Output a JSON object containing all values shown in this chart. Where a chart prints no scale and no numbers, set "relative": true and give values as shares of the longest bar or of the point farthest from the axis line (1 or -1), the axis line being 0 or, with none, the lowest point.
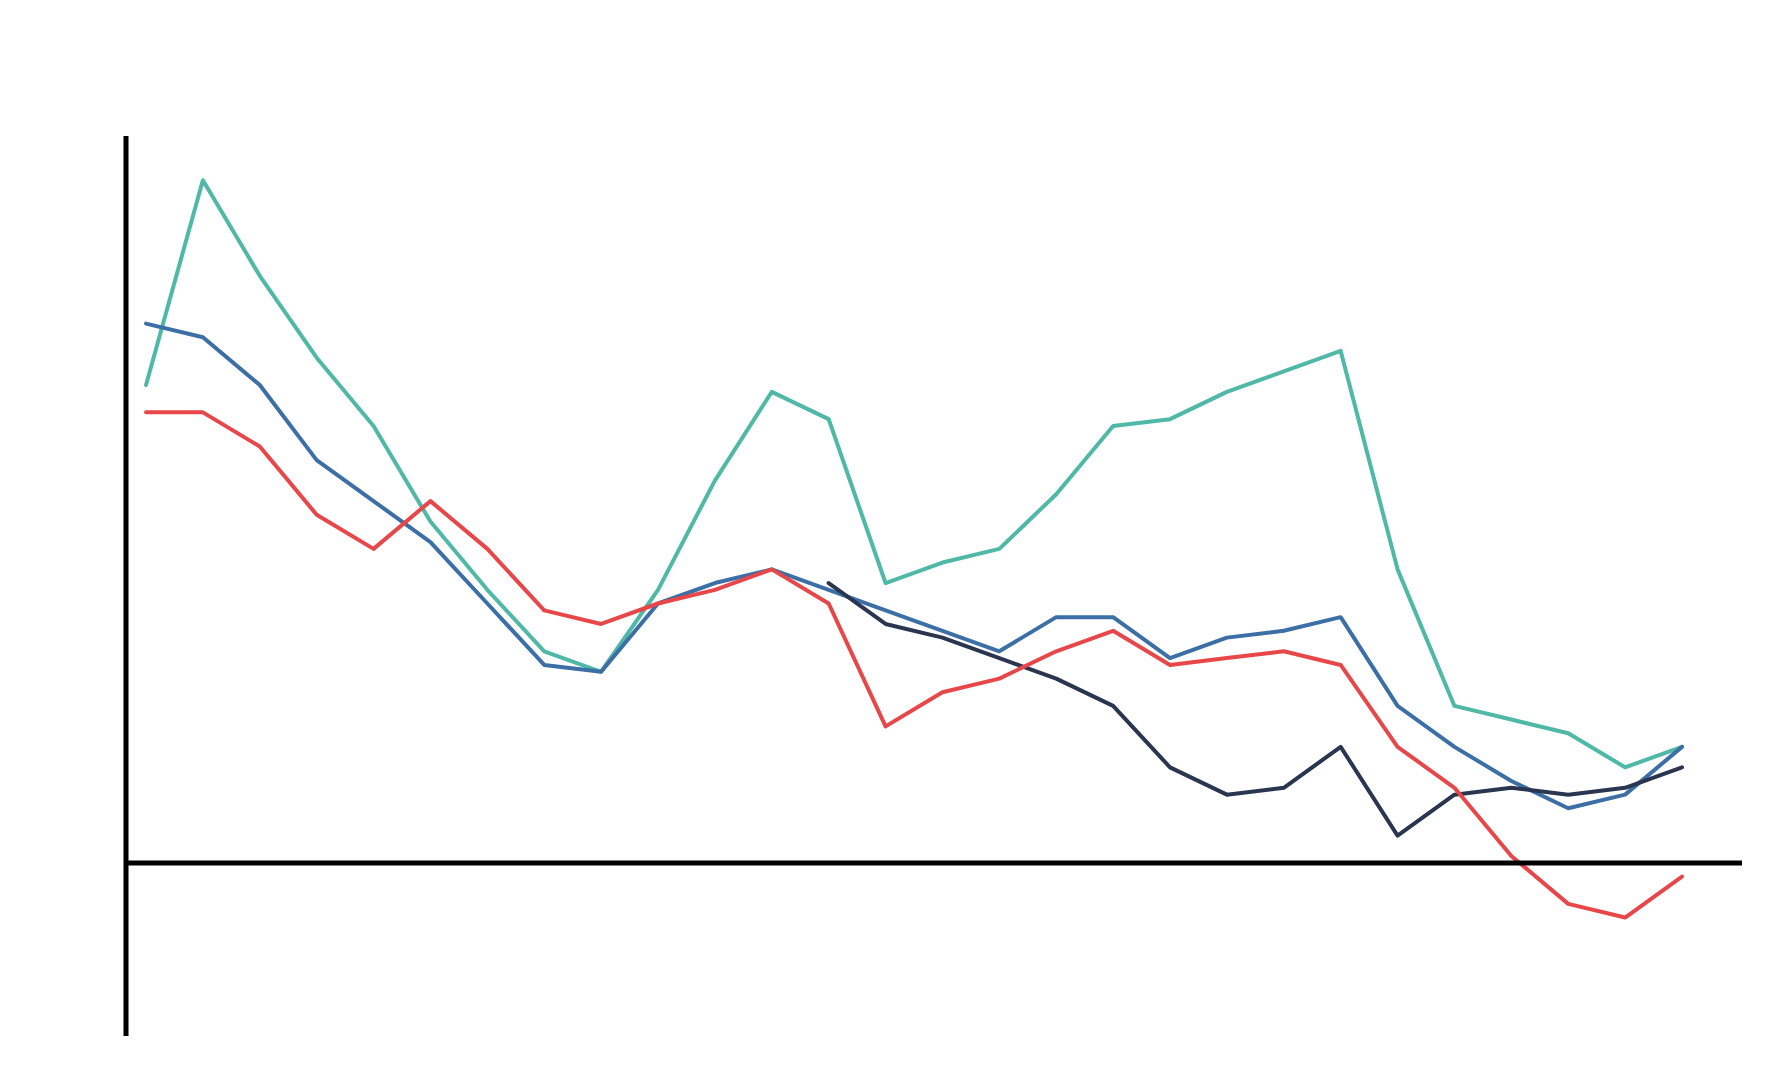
{
  "chart_data": {
    "type": "line",
    "relative": true,
    "marker": "none",
    "line_style": "solid",
    "categories": [
      null,
      null,
      null,
      null,
      null,
      null,
      null,
      null,
      null,
      null,
      null,
      null,
      null,
      null,
      null,
      null,
      null,
      null,
      null,
      null,
      null,
      null,
      null,
      null,
      null,
      null,
      null,
      null
    ],
    "series": [
      {
        "color": "#4fb8a6",
        "values": [
          0.7,
          1,
          0.86,
          0.74,
          0.64,
          0.5,
          0.4,
          0.31,
          0.28,
          0.4,
          0.56,
          0.69,
          0.65,
          0.41,
          0.44,
          0.46,
          0.54,
          0.64,
          0.65,
          0.69,
          0.72,
          0.75,
          0.43,
          0.23,
          0.21,
          0.19,
          0.14,
          0.17
        ]
      },
      {
        "color": "#3b6fa6",
        "values": [
          0.79,
          0.77,
          0.7,
          0.59,
          0.53,
          0.47,
          0.38,
          0.29,
          0.28,
          0.38,
          0.41,
          0.43,
          0.4,
          0.37,
          0.34,
          0.31,
          0.36,
          0.36,
          0.3,
          0.33,
          0.34,
          0.36,
          0.23,
          0.17,
          0.12,
          0.08,
          0.1,
          0.17
        ]
      },
      {
        "color": "#2a3550",
        "values": [
          null,
          null,
          null,
          null,
          null,
          null,
          null,
          null,
          null,
          null,
          null,
          null,
          0.41,
          0.35,
          0.33,
          0.3,
          0.27,
          0.23,
          0.14,
          0.1,
          0.11,
          0.17,
          0.04,
          0.1,
          0.11,
          0.1,
          0.11,
          0.14
        ]
      },
      {
        "color": "#e8474a",
        "values": [
          0.66,
          0.66,
          0.61,
          0.51,
          0.46,
          0.53,
          0.46,
          0.37,
          0.35,
          0.38,
          0.4,
          0.43,
          0.38,
          0.2,
          0.25,
          0.27,
          0.31,
          0.34,
          0.29,
          0.3,
          0.31,
          0.29,
          0.17,
          0.11,
          0.01,
          -0.06,
          -0.08,
          -0.02
        ]
      }
    ]
  }
}
